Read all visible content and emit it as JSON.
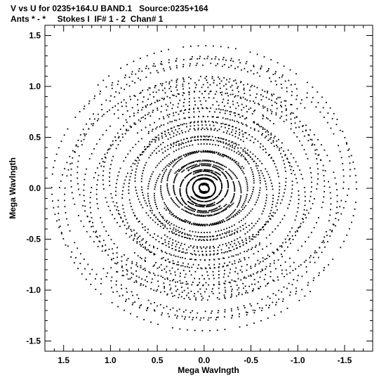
{
  "header": {
    "line1": "V vs U for 0235+164.U BAND.1   Source:0235+164",
    "line2": "Ants * - *     Stokes I  IF# 1 - 2  Chan# 1"
  },
  "chart_data": {
    "type": "scatter",
    "title": "V vs U for 0235+164.U BAND.1   Source:0235+164",
    "subtitle": "Ants * - *     Stokes I  IF# 1 - 2  Chan# 1",
    "xlabel": "Mega Wavlngth",
    "ylabel": "Mega Wavlngth",
    "xlim": [
      1.7,
      -1.8
    ],
    "ylim": [
      -1.6,
      1.6
    ],
    "x_reversed": true,
    "xticks": [
      1.5,
      1.0,
      0.5,
      0.0,
      -0.5,
      -1.0,
      -1.5
    ],
    "xtick_labels": [
      "1.5",
      "1.0",
      "0.5",
      "0.0",
      "-0.5",
      "-1.0",
      "-1.5"
    ],
    "yticks": [
      1.5,
      1.0,
      0.5,
      0.0,
      -0.5,
      -1.0,
      -1.5
    ],
    "ytick_labels": [
      "1.5",
      "1.0",
      "0.5",
      "0.0",
      "-0.5",
      "-1.0",
      "-1.5"
    ],
    "grid": false,
    "point_color": "#000000",
    "uv_tracks": {
      "tracks": 24,
      "radius_min": 0.05,
      "radius_max": 1.55,
      "arc_start_deg": -58,
      "arc_end_deg": 205,
      "points_per_arc": 90,
      "symmetric_pairs": true
    }
  }
}
